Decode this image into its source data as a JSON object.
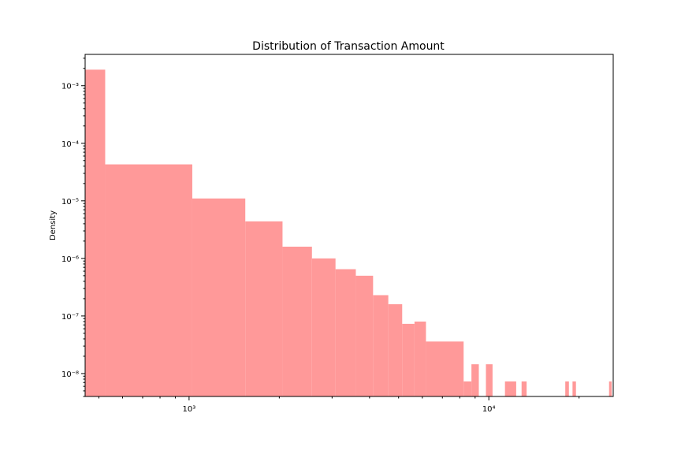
{
  "chart_data": {
    "type": "bar",
    "title": "Distribution of Transaction Amount",
    "xlabel": "",
    "ylabel": "Density",
    "xscale": "log",
    "yscale": "log",
    "xlim": [
      450,
      26000
    ],
    "ylim": [
      4e-09,
      0.0035
    ],
    "grid": false,
    "bar_color": "#ff9999",
    "x_ticks": [
      {
        "value": 1000,
        "label": "10³"
      },
      {
        "value": 10000,
        "label": "10⁴"
      }
    ],
    "y_ticks": [
      {
        "value": 0.001,
        "label": "10⁻³"
      },
      {
        "value": 0.0001,
        "label": "10⁻⁴"
      },
      {
        "value": 1e-05,
        "label": "10⁻⁵"
      },
      {
        "value": 1e-06,
        "label": "10⁻⁶"
      },
      {
        "value": 1e-07,
        "label": "10⁻⁷"
      },
      {
        "value": 1e-08,
        "label": "10⁻⁸"
      }
    ],
    "bins": [
      {
        "x0": 450,
        "x1": 525,
        "y": 0.0019
      },
      {
        "x0": 525,
        "x1": 1025,
        "y": 4.3e-05
      },
      {
        "x0": 1025,
        "x1": 1540,
        "y": 1.1e-05
      },
      {
        "x0": 1540,
        "x1": 2050,
        "y": 4.4e-06
      },
      {
        "x0": 2050,
        "x1": 2570,
        "y": 1.6e-06
      },
      {
        "x0": 2570,
        "x1": 3080,
        "y": 1e-06
      },
      {
        "x0": 3080,
        "x1": 3600,
        "y": 6.5e-07
      },
      {
        "x0": 3600,
        "x1": 4110,
        "y": 5e-07
      },
      {
        "x0": 4110,
        "x1": 4620,
        "y": 2.3e-07
      },
      {
        "x0": 4620,
        "x1": 5140,
        "y": 1.6e-07
      },
      {
        "x0": 5140,
        "x1": 5650,
        "y": 7.3e-08
      },
      {
        "x0": 5650,
        "x1": 6170,
        "y": 8e-08
      },
      {
        "x0": 6170,
        "x1": 8240,
        "y": 3.6e-08
      },
      {
        "x0": 8240,
        "x1": 8750,
        "y": 7.3e-09
      },
      {
        "x0": 8750,
        "x1": 9260,
        "y": 1.45e-08
      },
      {
        "x0": 9780,
        "x1": 10290,
        "y": 1.45e-08
      },
      {
        "x0": 11320,
        "x1": 12340,
        "y": 7.3e-09
      },
      {
        "x0": 12860,
        "x1": 13370,
        "y": 7.3e-09
      },
      {
        "x0": 17990,
        "x1": 18500,
        "y": 7.3e-09
      },
      {
        "x0": 19020,
        "x1": 19530,
        "y": 7.3e-09
      },
      {
        "x0": 25180,
        "x1": 25690,
        "y": 7.3e-09
      }
    ]
  }
}
